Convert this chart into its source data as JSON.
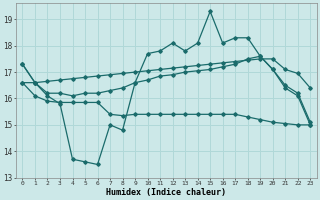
{
  "xlabel": "Humidex (Indice chaleur)",
  "xlim": [
    -0.5,
    23.5
  ],
  "ylim": [
    13,
    19.6
  ],
  "yticks": [
    13,
    14,
    15,
    16,
    17,
    18,
    19
  ],
  "xticks": [
    0,
    1,
    2,
    3,
    4,
    5,
    6,
    7,
    8,
    9,
    10,
    11,
    12,
    13,
    14,
    15,
    16,
    17,
    18,
    19,
    20,
    21,
    22,
    23
  ],
  "background_color": "#cce8e8",
  "grid_color": "#b0d8d8",
  "line_color": "#1a6b6b",
  "series_max": [
    17.3,
    16.6,
    16.1,
    15.8,
    13.7,
    13.6,
    13.5,
    15.0,
    14.8,
    16.6,
    17.7,
    17.8,
    18.1,
    17.8,
    18.1,
    19.3,
    18.1,
    18.3,
    18.3,
    17.6,
    17.1,
    16.4,
    16.1,
    15.0
  ],
  "series_upper": [
    17.3,
    16.6,
    16.2,
    16.2,
    16.1,
    16.2,
    16.2,
    16.3,
    16.4,
    16.6,
    16.7,
    16.85,
    16.9,
    17.0,
    17.05,
    17.1,
    17.2,
    17.3,
    17.5,
    17.6,
    17.1,
    16.5,
    16.2,
    15.1
  ],
  "series_mid": [
    16.6,
    16.6,
    16.65,
    16.7,
    16.75,
    16.8,
    16.85,
    16.9,
    16.95,
    17.0,
    17.05,
    17.1,
    17.15,
    17.2,
    17.25,
    17.3,
    17.35,
    17.4,
    17.45,
    17.5,
    17.5,
    17.1,
    16.95,
    16.4
  ],
  "series_min": [
    16.6,
    16.1,
    15.9,
    15.85,
    15.85,
    15.85,
    15.85,
    15.4,
    15.35,
    15.4,
    15.4,
    15.4,
    15.4,
    15.4,
    15.4,
    15.4,
    15.4,
    15.4,
    15.3,
    15.2,
    15.1,
    15.05,
    15.0,
    15.0
  ]
}
